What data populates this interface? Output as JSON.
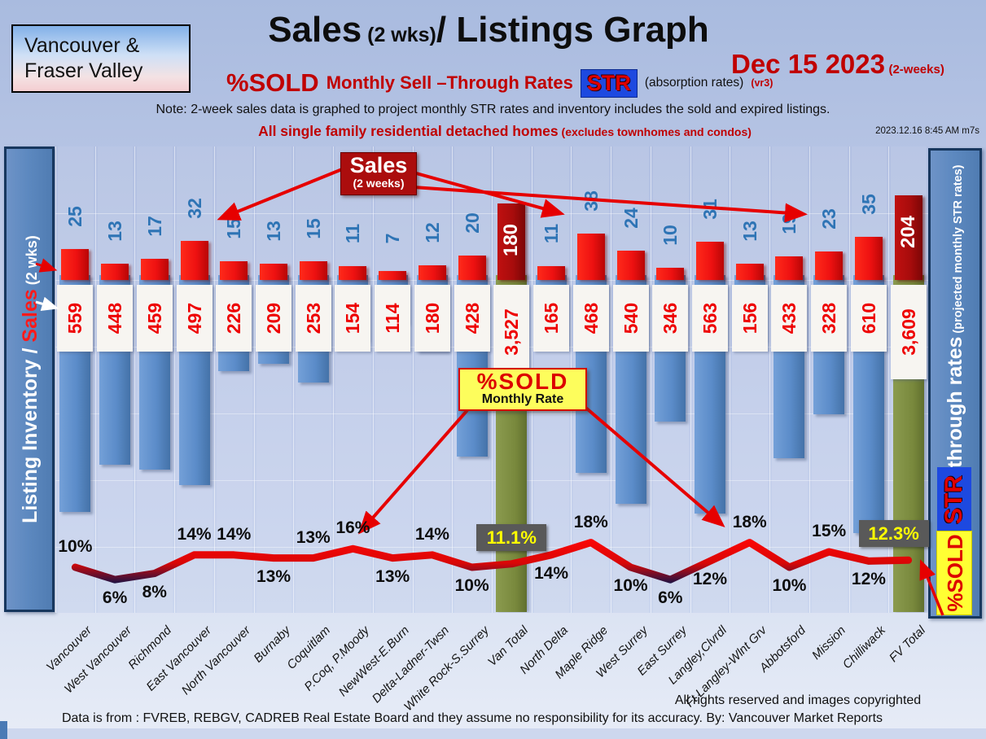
{
  "header": {
    "region_line1": "Vancouver &",
    "region_line2": "Fraser Valley",
    "title_main": "Sales",
    "title_wks": " (2 wks)",
    "title_rest": "/ Listings Graph",
    "date_main": "Dec 15  2023",
    "date_note": "(2-weeks)",
    "pct_sold": "%SOLD",
    "rates_text": "Monthly Sell –Through Rates",
    "str_chip": "STR",
    "absorption": "(absorption rates)",
    "version": "(vr3)",
    "note": "Note: 2-week sales data is graphed to project monthly STR rates and inventory includes the sold and expired listings.",
    "scope_main": "All single family residential detached homes",
    "scope_note": " (excludes townhomes and condos)",
    "timestamp": "2023.12.16 8:45 AM m7s"
  },
  "left_axis": {
    "part1": "Listing Inventory / ",
    "part2": "Sales",
    "part3": " (2  wks)"
  },
  "right_axis": {
    "main": "Sell-through rates",
    "sub": "  (projected monthly STR rates)",
    "str_badge": "STR",
    "sold_badge": "%SOLD"
  },
  "badges": {
    "sales_line1": "Sales",
    "sales_line2": "(2 weeks)",
    "rate_line1": "%SOLD",
    "rate_line2": "Monthly Rate"
  },
  "footer": {
    "rights": "All rights reserved and  images copyrighted",
    "source": "Data is from : FVREB, REBGV, CADREB Real Estate Board and they assume no responsibility for its accuracy. By: Vancouver Market Reports"
  },
  "chart_data": {
    "type": "bar",
    "title": "Sales (2 wks)/ Listings Graph — Dec 15 2023",
    "xlabel": "Area",
    "ylabel_left": "Listing Inventory / Sales (2 wks)",
    "ylabel_right": "Sell-through rates (projected monthly STR rates)",
    "categories": [
      "Vancouver",
      "West Vancouver",
      "Richmond",
      "East Vancouver",
      "North Vancouver",
      "Burnaby",
      "Coquitlam",
      "P.Coq, P.Moody",
      "NewWest-E.Burn",
      "Delta-Ladner-Twsn",
      "White Rock-S.Surrey",
      "Van Total",
      "North Delta",
      "Maple Ridge",
      "West Surrey",
      "East Surrey",
      "Langley,Clvrdl",
      "Ft Langley-Wlnt Grv",
      "Abbotsford",
      "Mission",
      "Chilliwack",
      "FV Total"
    ],
    "series": [
      {
        "name": "Sales (2 weeks)",
        "type": "bar",
        "values": [
          25,
          13,
          17,
          32,
          15,
          13,
          15,
          11,
          7,
          12,
          20,
          180,
          11,
          38,
          24,
          10,
          31,
          13,
          19,
          23,
          35,
          204
        ]
      },
      {
        "name": "Listing Inventory",
        "type": "bar",
        "values": [
          559,
          448,
          459,
          497,
          226,
          209,
          253,
          154,
          114,
          180,
          428,
          3527,
          165,
          468,
          540,
          346,
          563,
          156,
          433,
          328,
          610,
          3609
        ]
      },
      {
        "name": "%SOLD Monthly STR rate",
        "type": "line",
        "unit": "%",
        "values": [
          10,
          6,
          8,
          14,
          14,
          13,
          13,
          16,
          13,
          14,
          10,
          11.1,
          14,
          18,
          10,
          6,
          12,
          18,
          10,
          15,
          12,
          12.3
        ]
      }
    ],
    "totals_indices": [
      11,
      21
    ],
    "str_label_position": [
      "above",
      "below",
      "below",
      "above",
      "above",
      "below",
      "above",
      "above",
      "below",
      "above",
      "below",
      "box",
      "below",
      "above",
      "below",
      "below",
      "below",
      "above",
      "below",
      "above",
      "below",
      "box"
    ],
    "legend_position": "none",
    "grid": true,
    "colors": {
      "sales_bar": "#ee1111",
      "totals_sales_bar": "#a80c0c",
      "inventory_bar": "#5b8cc9",
      "totals_inventory_bar": "#78883c",
      "line_high": "#ff0505",
      "line_low": "#131347",
      "sales_value_text": "#2e74b5",
      "inventory_value_text": "#ee0000",
      "total_rate_box_bg": "#595959",
      "total_rate_box_text": "#ffff00"
    }
  }
}
